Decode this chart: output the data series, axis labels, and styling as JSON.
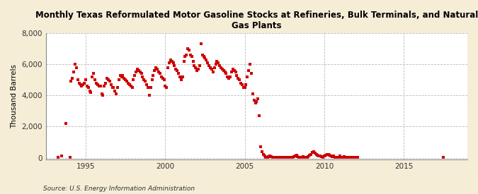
{
  "title": "Monthly Texas Reformulated Motor Gasoline Stocks at Refineries, Bulk Terminals, and Natural\nGas Plants",
  "ylabel": "Thousand Barrels",
  "source": "Source: U.S. Energy Information Administration",
  "marker_color": "#CC0000",
  "background_color": "#F5EDD6",
  "plot_background": "#FFFFFF",
  "ylim": [
    -100,
    8000
  ],
  "yticks": [
    0,
    2000,
    4000,
    6000,
    8000
  ],
  "ytick_labels": [
    "0",
    "2,000",
    "4,000",
    "6,000",
    "8,000"
  ],
  "xticks": [
    1995,
    2000,
    2005,
    2010,
    2015
  ],
  "xlim": [
    1992.5,
    2019.0
  ],
  "data": [
    [
      1993.25,
      50
    ],
    [
      1993.5,
      100
    ],
    [
      1993.75,
      2200
    ],
    [
      1994.0,
      50
    ],
    [
      1994.08,
      4900
    ],
    [
      1994.17,
      5100
    ],
    [
      1994.25,
      5500
    ],
    [
      1994.33,
      6000
    ],
    [
      1994.42,
      5800
    ],
    [
      1994.5,
      5000
    ],
    [
      1994.58,
      4800
    ],
    [
      1994.67,
      4700
    ],
    [
      1994.75,
      4600
    ],
    [
      1994.83,
      4700
    ],
    [
      1994.92,
      4800
    ],
    [
      1995.0,
      5000
    ],
    [
      1995.08,
      4600
    ],
    [
      1995.17,
      4500
    ],
    [
      1995.25,
      4300
    ],
    [
      1995.33,
      4200
    ],
    [
      1995.42,
      5200
    ],
    [
      1995.5,
      5400
    ],
    [
      1995.58,
      5000
    ],
    [
      1995.67,
      4800
    ],
    [
      1995.75,
      4700
    ],
    [
      1995.83,
      4600
    ],
    [
      1995.92,
      4600
    ],
    [
      1996.0,
      4100
    ],
    [
      1996.08,
      4000
    ],
    [
      1996.17,
      4600
    ],
    [
      1996.25,
      4800
    ],
    [
      1996.33,
      5100
    ],
    [
      1996.42,
      5000
    ],
    [
      1996.5,
      4900
    ],
    [
      1996.58,
      4700
    ],
    [
      1996.67,
      4500
    ],
    [
      1996.75,
      4500
    ],
    [
      1996.83,
      4300
    ],
    [
      1996.92,
      4100
    ],
    [
      1997.0,
      4500
    ],
    [
      1997.08,
      5000
    ],
    [
      1997.17,
      5300
    ],
    [
      1997.25,
      5200
    ],
    [
      1997.33,
      5300
    ],
    [
      1997.42,
      5100
    ],
    [
      1997.5,
      5000
    ],
    [
      1997.58,
      4900
    ],
    [
      1997.67,
      4800
    ],
    [
      1997.75,
      4700
    ],
    [
      1997.83,
      4600
    ],
    [
      1997.92,
      4500
    ],
    [
      1998.0,
      5000
    ],
    [
      1998.08,
      5300
    ],
    [
      1998.17,
      5500
    ],
    [
      1998.25,
      5700
    ],
    [
      1998.33,
      5600
    ],
    [
      1998.42,
      5500
    ],
    [
      1998.5,
      5400
    ],
    [
      1998.58,
      5200
    ],
    [
      1998.67,
      5000
    ],
    [
      1998.75,
      4900
    ],
    [
      1998.83,
      4700
    ],
    [
      1998.92,
      4500
    ],
    [
      1999.0,
      4000
    ],
    [
      1999.08,
      4500
    ],
    [
      1999.17,
      5000
    ],
    [
      1999.25,
      5300
    ],
    [
      1999.33,
      5600
    ],
    [
      1999.42,
      5800
    ],
    [
      1999.5,
      5700
    ],
    [
      1999.58,
      5500
    ],
    [
      1999.67,
      5400
    ],
    [
      1999.75,
      5200
    ],
    [
      1999.83,
      5100
    ],
    [
      1999.92,
      5000
    ],
    [
      2000.0,
      4600
    ],
    [
      2000.08,
      4500
    ],
    [
      2000.17,
      5800
    ],
    [
      2000.25,
      6100
    ],
    [
      2000.33,
      6300
    ],
    [
      2000.42,
      6200
    ],
    [
      2000.5,
      6100
    ],
    [
      2000.58,
      5900
    ],
    [
      2000.67,
      5700
    ],
    [
      2000.75,
      5600
    ],
    [
      2000.83,
      5400
    ],
    [
      2000.92,
      5200
    ],
    [
      2001.0,
      5000
    ],
    [
      2001.08,
      5200
    ],
    [
      2001.17,
      6200
    ],
    [
      2001.25,
      6500
    ],
    [
      2001.33,
      6600
    ],
    [
      2001.42,
      7000
    ],
    [
      2001.5,
      6900
    ],
    [
      2001.58,
      6600
    ],
    [
      2001.67,
      6500
    ],
    [
      2001.75,
      6200
    ],
    [
      2001.83,
      5900
    ],
    [
      2001.92,
      5800
    ],
    [
      2002.0,
      5600
    ],
    [
      2002.08,
      5700
    ],
    [
      2002.17,
      5900
    ],
    [
      2002.25,
      7300
    ],
    [
      2002.33,
      6600
    ],
    [
      2002.42,
      6500
    ],
    [
      2002.5,
      6400
    ],
    [
      2002.58,
      6300
    ],
    [
      2002.67,
      6100
    ],
    [
      2002.75,
      5900
    ],
    [
      2002.83,
      5800
    ],
    [
      2002.92,
      5700
    ],
    [
      2003.0,
      5500
    ],
    [
      2003.08,
      5800
    ],
    [
      2003.17,
      6000
    ],
    [
      2003.25,
      6200
    ],
    [
      2003.33,
      6100
    ],
    [
      2003.42,
      5900
    ],
    [
      2003.5,
      5800
    ],
    [
      2003.58,
      5700
    ],
    [
      2003.67,
      5600
    ],
    [
      2003.75,
      5500
    ],
    [
      2003.83,
      5400
    ],
    [
      2003.92,
      5200
    ],
    [
      2004.0,
      5100
    ],
    [
      2004.08,
      5200
    ],
    [
      2004.17,
      5500
    ],
    [
      2004.25,
      5700
    ],
    [
      2004.33,
      5600
    ],
    [
      2004.42,
      5500
    ],
    [
      2004.5,
      5300
    ],
    [
      2004.58,
      5100
    ],
    [
      2004.67,
      5000
    ],
    [
      2004.75,
      4800
    ],
    [
      2004.83,
      4700
    ],
    [
      2004.92,
      4500
    ],
    [
      2005.0,
      4500
    ],
    [
      2005.08,
      4700
    ],
    [
      2005.17,
      5200
    ],
    [
      2005.25,
      5600
    ],
    [
      2005.33,
      6000
    ],
    [
      2005.42,
      5400
    ],
    [
      2005.5,
      4100
    ],
    [
      2005.58,
      3700
    ],
    [
      2005.67,
      3500
    ],
    [
      2005.75,
      3600
    ],
    [
      2005.83,
      3800
    ],
    [
      2005.92,
      2700
    ],
    [
      2006.0,
      700
    ],
    [
      2006.08,
      400
    ],
    [
      2006.17,
      200
    ],
    [
      2006.25,
      100
    ],
    [
      2006.33,
      50
    ],
    [
      2006.42,
      50
    ],
    [
      2006.5,
      80
    ],
    [
      2006.58,
      100
    ],
    [
      2006.67,
      80
    ],
    [
      2006.75,
      50
    ],
    [
      2006.83,
      50
    ],
    [
      2006.92,
      50
    ],
    [
      2007.0,
      50
    ],
    [
      2007.08,
      50
    ],
    [
      2007.17,
      50
    ],
    [
      2007.25,
      50
    ],
    [
      2007.33,
      50
    ],
    [
      2007.42,
      50
    ],
    [
      2007.5,
      50
    ],
    [
      2007.58,
      50
    ],
    [
      2007.67,
      50
    ],
    [
      2007.75,
      50
    ],
    [
      2007.83,
      50
    ],
    [
      2007.92,
      50
    ],
    [
      2008.0,
      50
    ],
    [
      2008.08,
      80
    ],
    [
      2008.17,
      100
    ],
    [
      2008.25,
      150
    ],
    [
      2008.33,
      80
    ],
    [
      2008.42,
      50
    ],
    [
      2008.5,
      50
    ],
    [
      2008.58,
      50
    ],
    [
      2008.67,
      80
    ],
    [
      2008.75,
      50
    ],
    [
      2008.83,
      50
    ],
    [
      2008.92,
      50
    ],
    [
      2009.0,
      80
    ],
    [
      2009.08,
      150
    ],
    [
      2009.17,
      200
    ],
    [
      2009.25,
      350
    ],
    [
      2009.33,
      400
    ],
    [
      2009.42,
      300
    ],
    [
      2009.5,
      200
    ],
    [
      2009.58,
      150
    ],
    [
      2009.67,
      100
    ],
    [
      2009.75,
      100
    ],
    [
      2009.83,
      80
    ],
    [
      2009.92,
      50
    ],
    [
      2010.0,
      100
    ],
    [
      2010.08,
      150
    ],
    [
      2010.17,
      200
    ],
    [
      2010.25,
      200
    ],
    [
      2010.33,
      150
    ],
    [
      2010.42,
      100
    ],
    [
      2010.5,
      80
    ],
    [
      2010.58,
      100
    ],
    [
      2010.67,
      50
    ],
    [
      2010.75,
      50
    ],
    [
      2010.83,
      50
    ],
    [
      2010.92,
      50
    ],
    [
      2011.0,
      100
    ],
    [
      2011.08,
      50
    ],
    [
      2011.17,
      50
    ],
    [
      2011.25,
      80
    ],
    [
      2011.33,
      50
    ],
    [
      2011.42,
      50
    ],
    [
      2011.5,
      50
    ],
    [
      2011.58,
      50
    ],
    [
      2011.67,
      50
    ],
    [
      2011.75,
      50
    ],
    [
      2011.83,
      50
    ],
    [
      2011.92,
      50
    ],
    [
      2012.0,
      50
    ],
    [
      2012.08,
      50
    ],
    [
      2017.5,
      50
    ]
  ]
}
